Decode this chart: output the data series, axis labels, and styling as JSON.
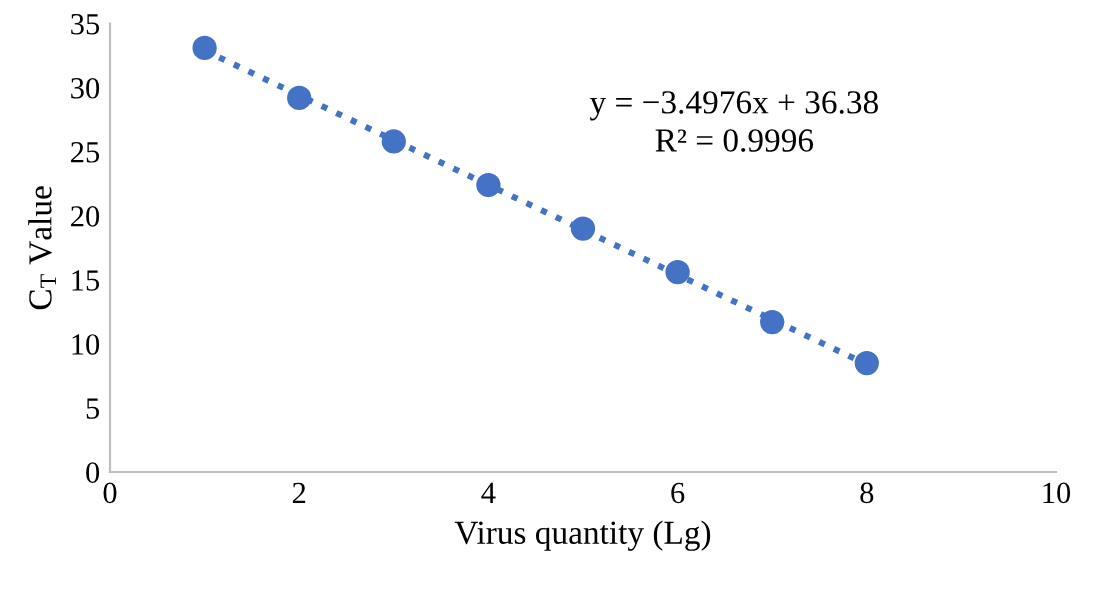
{
  "chart_data": {
    "type": "scatter",
    "xlabel": "Virus quantity (Lg)",
    "ylabel": "C$_{T}$ Value",
    "xlim": [
      0,
      10
    ],
    "xticks": [
      0,
      2,
      4,
      6,
      8,
      10
    ],
    "ylim": [
      0,
      35
    ],
    "yticks": [
      0,
      5,
      10,
      15,
      20,
      25,
      30,
      35
    ],
    "grid": false,
    "marker": "circle",
    "series": [
      {
        "color": "#4472c4",
        "x": [
          1,
          2,
          3,
          4,
          5,
          6,
          7,
          8
        ],
        "values": [
          33.1,
          29.2,
          25.8,
          22.4,
          19.0,
          15.6,
          11.7,
          8.5
        ]
      },
      {
        "type": "line",
        "color": "#4472c4",
        "line_style": "dotted",
        "marker": "none",
        "x": [
          1,
          8
        ],
        "values": [
          32.9,
          8.4
        ]
      }
    ],
    "annotations": [
      "y = −3.4976x + 36.38",
      "R² = 0.9996"
    ]
  }
}
